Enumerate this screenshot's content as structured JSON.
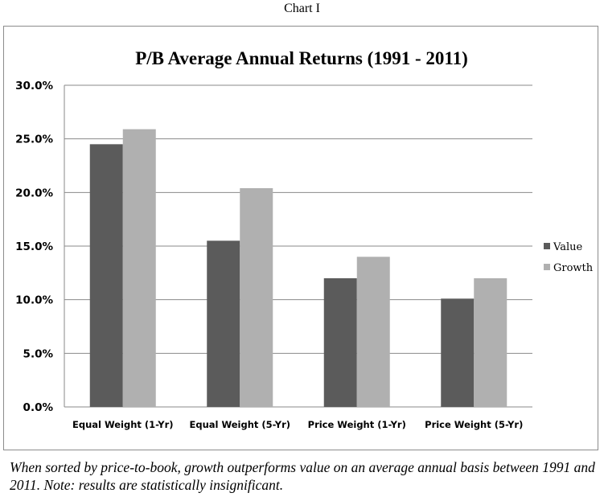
{
  "page": {
    "heading": "Chart I",
    "caption": "When sorted by price-to-book, growth outperforms value on an average annual basis between 1991 and 2011.  Note: results are statistically insignificant."
  },
  "chart_data": {
    "type": "bar",
    "title": "P/B Average Annual Returns (1991 - 2011)",
    "xlabel": "",
    "ylabel": "",
    "categories": [
      "Equal Weight (1-Yr)",
      "Equal Weight (5-Yr)",
      "Price Weight (1-Yr)",
      "Price Weight (5-Yr)"
    ],
    "series": [
      {
        "name": "Value",
        "values": [
          24.5,
          15.5,
          12.0,
          10.1
        ],
        "color": "#5b5b5b"
      },
      {
        "name": "Growth",
        "values": [
          25.9,
          20.4,
          14.0,
          12.0
        ],
        "color": "#b0b0b0"
      }
    ],
    "ylim": [
      0,
      30
    ],
    "yticks": [
      "0.0%",
      "5.0%",
      "10.0%",
      "15.0%",
      "20.0%",
      "25.0%",
      "30.0%"
    ],
    "grid": true,
    "legend": "right"
  }
}
